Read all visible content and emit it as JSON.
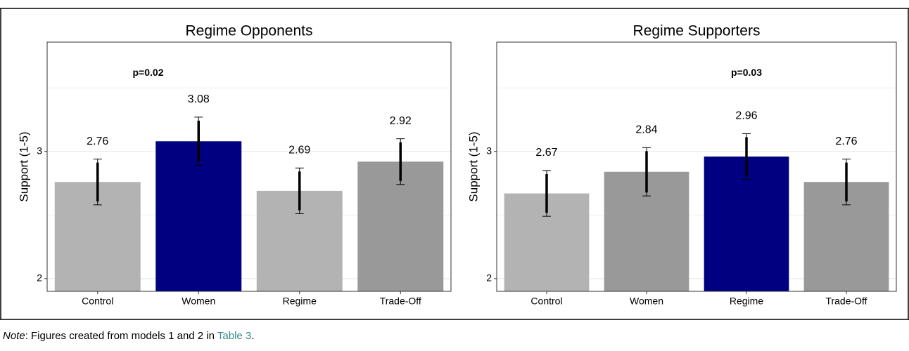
{
  "chart_data": [
    {
      "type": "bar",
      "title": "Regime Opponents",
      "ylabel": "Support (1-5)",
      "categories": [
        "Control",
        "Women",
        "Regime",
        "Trade-Off"
      ],
      "values": [
        2.76,
        3.08,
        2.69,
        2.92
      ],
      "errors": [
        0.18,
        0.19,
        0.18,
        0.18
      ],
      "colors": [
        "#b3b3b3",
        "#000080",
        "#b3b3b3",
        "#999999"
      ],
      "ylim": [
        1.9,
        3.86
      ],
      "yticks": [
        2,
        3
      ],
      "minor_yticks": [
        2.5,
        3.5
      ],
      "grid": true,
      "annotations": [
        {
          "text": "p=0.02",
          "x": 0.5,
          "y": 3.615
        }
      ]
    },
    {
      "type": "bar",
      "title": "Regime Supporters",
      "ylabel": "Support (1-5)",
      "categories": [
        "Control",
        "Women",
        "Regime",
        "Trade-Off"
      ],
      "values": [
        2.67,
        2.84,
        2.96,
        2.76
      ],
      "errors": [
        0.18,
        0.19,
        0.18,
        0.18
      ],
      "colors": [
        "#b3b3b3",
        "#999999",
        "#000080",
        "#999999"
      ],
      "ylim": [
        1.9,
        3.86
      ],
      "yticks": [
        2,
        3
      ],
      "minor_yticks": [
        2.5,
        3.5
      ],
      "grid": true,
      "annotations": [
        {
          "text": "p=0.03",
          "x": 2,
          "y": 3.615
        }
      ]
    }
  ],
  "note": {
    "label": "Note",
    "text": ": Figures created from models 1 and 2 in ",
    "link": "Table 3",
    "end": "."
  }
}
